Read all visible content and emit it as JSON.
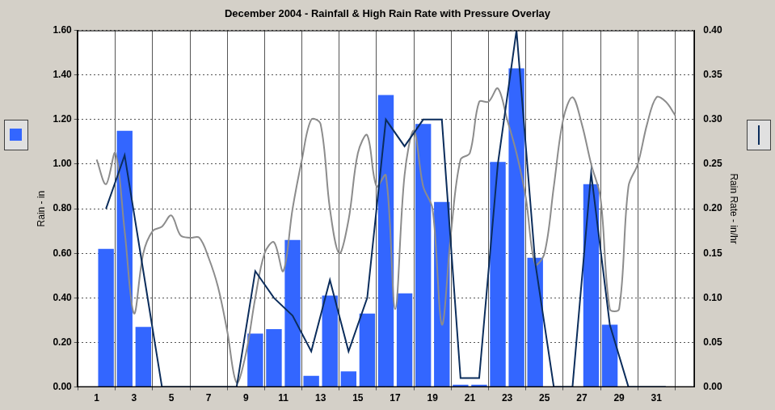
{
  "chart_data": {
    "type": "bar",
    "title": "December 2004 - Rainfall & High Rain Rate with Pressure Overlay",
    "y_label": "Rain - in",
    "y2_label": "Rain Rate - in/hr",
    "grid": true,
    "xlim": [
      1,
      32
    ],
    "xticks": [
      1,
      3,
      5,
      7,
      9,
      11,
      13,
      15,
      17,
      19,
      21,
      23,
      25,
      27,
      29,
      31
    ],
    "ylim": [
      0,
      1.6
    ],
    "yticks": [
      {
        "value": 0,
        "label": "0.00"
      },
      {
        "value": 0.2,
        "label": "0.20"
      },
      {
        "value": 0.4,
        "label": "0.40"
      },
      {
        "value": 0.6,
        "label": "0.60"
      },
      {
        "value": 0.8,
        "label": "0.80"
      },
      {
        "value": 1.0,
        "label": "1.00"
      },
      {
        "value": 1.2,
        "label": "1.20"
      },
      {
        "value": 1.4,
        "label": "1.40"
      },
      {
        "value": 1.6,
        "label": "1.60"
      }
    ],
    "y2lim": [
      0,
      0.4
    ],
    "y2ticks": [
      {
        "value": 0,
        "label": "0.00"
      },
      {
        "value": 0.05,
        "label": "0.05"
      },
      {
        "value": 0.1,
        "label": "0.10"
      },
      {
        "value": 0.15,
        "label": "0.15"
      },
      {
        "value": 0.2,
        "label": "0.20"
      },
      {
        "value": 0.25,
        "label": "0.25"
      },
      {
        "value": 0.3,
        "label": "0.30"
      },
      {
        "value": 0.35,
        "label": "0.35"
      },
      {
        "value": 0.4,
        "label": "0.40"
      }
    ],
    "series": [
      {
        "type": "bar",
        "color": "#3366ff",
        "x": [
          1.5,
          2.5,
          3.5,
          4.5,
          5.5,
          6.5,
          7.5,
          8.5,
          9.5,
          10.5,
          11.5,
          12.5,
          13.5,
          14.5,
          15.5,
          16.5,
          17.5,
          18.5,
          19.5,
          20.5,
          21.5,
          22.5,
          23.5,
          24.5,
          25.5,
          26.5,
          27.5,
          28.5,
          29.5,
          30.5,
          31.5
        ],
        "values": [
          0.62,
          1.15,
          0.27,
          0,
          0,
          0,
          0,
          0,
          0.24,
          0.26,
          0.66,
          0.05,
          0.41,
          0.07,
          0.33,
          1.31,
          0.42,
          1.18,
          0.83,
          0.01,
          0.01,
          1.01,
          1.43,
          0.58,
          0,
          0,
          0.91,
          0.28,
          0,
          0,
          0
        ]
      },
      {
        "type": "line",
        "axis": "y2",
        "color": "#0b2d5c",
        "x": [
          1.5,
          2.5,
          3.5,
          4.5,
          5.5,
          6.5,
          7.5,
          8.5,
          9.5,
          10.5,
          11.5,
          12.5,
          13.5,
          14.5,
          15.5,
          16.5,
          17.5,
          18.5,
          19.5,
          20.5,
          21.5,
          22.5,
          23.5,
          24.5,
          25.5,
          26.5,
          27.5,
          28.5,
          29.5,
          30.5,
          31.5
        ],
        "values": [
          0.2,
          0.26,
          0.13,
          0,
          0,
          0,
          0,
          0,
          0.13,
          0.1,
          0.08,
          0.04,
          0.12,
          0.04,
          0.1,
          0.3,
          0.27,
          0.3,
          0.3,
          0.01,
          0.01,
          0.25,
          0.4,
          0.14,
          0,
          0,
          0.24,
          0.07,
          0,
          0,
          0
        ]
      },
      {
        "type": "line",
        "color": "#8c8c8c",
        "x": [
          1,
          1.5,
          2,
          2.5,
          3,
          3.5,
          4,
          4.5,
          5,
          5.5,
          6,
          6.5,
          7,
          7.5,
          8,
          8.5,
          9,
          9.5,
          10,
          10.5,
          11,
          11.5,
          12,
          12.5,
          13,
          13.5,
          14,
          14.5,
          15,
          15.5,
          16,
          16.5,
          17,
          17.5,
          18,
          18.5,
          19,
          19.5,
          20,
          20.5,
          21,
          21.5,
          22,
          22.5,
          23,
          23.5,
          24,
          24.5,
          25,
          25.5,
          26,
          26.5,
          27,
          27.5,
          28,
          28.5,
          29,
          29.5,
          30,
          30.5,
          31,
          31.5,
          32
        ],
        "values": [
          1.02,
          0.91,
          1.05,
          0.7,
          0.33,
          0.6,
          0.7,
          0.72,
          0.77,
          0.68,
          0.67,
          0.67,
          0.58,
          0.45,
          0.25,
          0.02,
          0.15,
          0.4,
          0.6,
          0.65,
          0.52,
          0.8,
          1.02,
          1.2,
          1.18,
          0.8,
          0.6,
          0.75,
          1.05,
          1.13,
          0.9,
          0.95,
          0.35,
          0.95,
          1.15,
          0.9,
          0.8,
          0.28,
          0.7,
          1.02,
          1.05,
          1.28,
          1.28,
          1.34,
          1.2,
          1.05,
          0.85,
          0.55,
          0.6,
          0.9,
          1.2,
          1.3,
          1.18,
          1.0,
          0.85,
          0.35,
          0.35,
          0.9,
          1.0,
          1.18,
          1.3,
          1.28,
          1.22
        ]
      }
    ]
  }
}
